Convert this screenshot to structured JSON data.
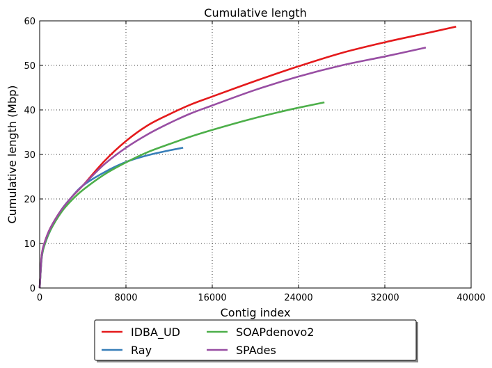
{
  "chart_data": {
    "type": "line",
    "title": "Cumulative length",
    "xlabel": "Contig index",
    "ylabel": "Cumulative length (Mbp)",
    "xlim": [
      0,
      40000
    ],
    "ylim": [
      0,
      60
    ],
    "xticks": [
      0,
      8000,
      16000,
      24000,
      32000,
      40000
    ],
    "yticks": [
      0,
      10,
      20,
      30,
      40,
      50,
      60
    ],
    "grid": true,
    "legend_position": "bottom-center outside",
    "series": [
      {
        "name": "IDBA_UD",
        "color": "#e41a1c",
        "x": [
          0,
          200,
          500,
          1000,
          2000,
          3000,
          4000,
          6000,
          8000,
          10000,
          12000,
          14000,
          16000,
          20000,
          24000,
          28000,
          32000,
          36000,
          38600
        ],
        "y": [
          0,
          7.5,
          10.5,
          13.5,
          17.5,
          20.5,
          23.0,
          28.5,
          33.0,
          36.5,
          39.0,
          41.2,
          43.0,
          46.5,
          49.8,
          52.8,
          55.2,
          57.3,
          58.7
        ]
      },
      {
        "name": "Ray",
        "color": "#377eb8",
        "x": [
          0,
          200,
          500,
          1000,
          2000,
          3000,
          4000,
          6000,
          8000,
          10000,
          12000,
          13300
        ],
        "y": [
          0,
          7.0,
          10.0,
          13.0,
          17.5,
          20.5,
          23.0,
          26.0,
          28.3,
          29.8,
          30.9,
          31.5
        ]
      },
      {
        "name": "SOAPdenovo2",
        "color": "#4daf4a",
        "x": [
          0,
          200,
          500,
          1000,
          2000,
          3000,
          4000,
          6000,
          8000,
          10000,
          12000,
          14000,
          16000,
          18000,
          20000,
          22000,
          24000,
          26400
        ],
        "y": [
          0,
          7.0,
          10.0,
          13.0,
          17.0,
          19.8,
          22.0,
          25.5,
          28.2,
          30.5,
          32.3,
          34.0,
          35.5,
          36.9,
          38.2,
          39.4,
          40.5,
          41.7
        ]
      },
      {
        "name": "SPAdes",
        "color": "#984ea3",
        "x": [
          0,
          200,
          500,
          1000,
          2000,
          3000,
          4000,
          6000,
          8000,
          10000,
          12000,
          14000,
          16000,
          20000,
          24000,
          28000,
          32000,
          35800
        ],
        "y": [
          0,
          7.5,
          10.5,
          13.5,
          17.5,
          20.5,
          23.0,
          27.8,
          31.5,
          34.5,
          37.0,
          39.2,
          41.0,
          44.5,
          47.5,
          50.0,
          52.0,
          54.0
        ]
      }
    ]
  }
}
